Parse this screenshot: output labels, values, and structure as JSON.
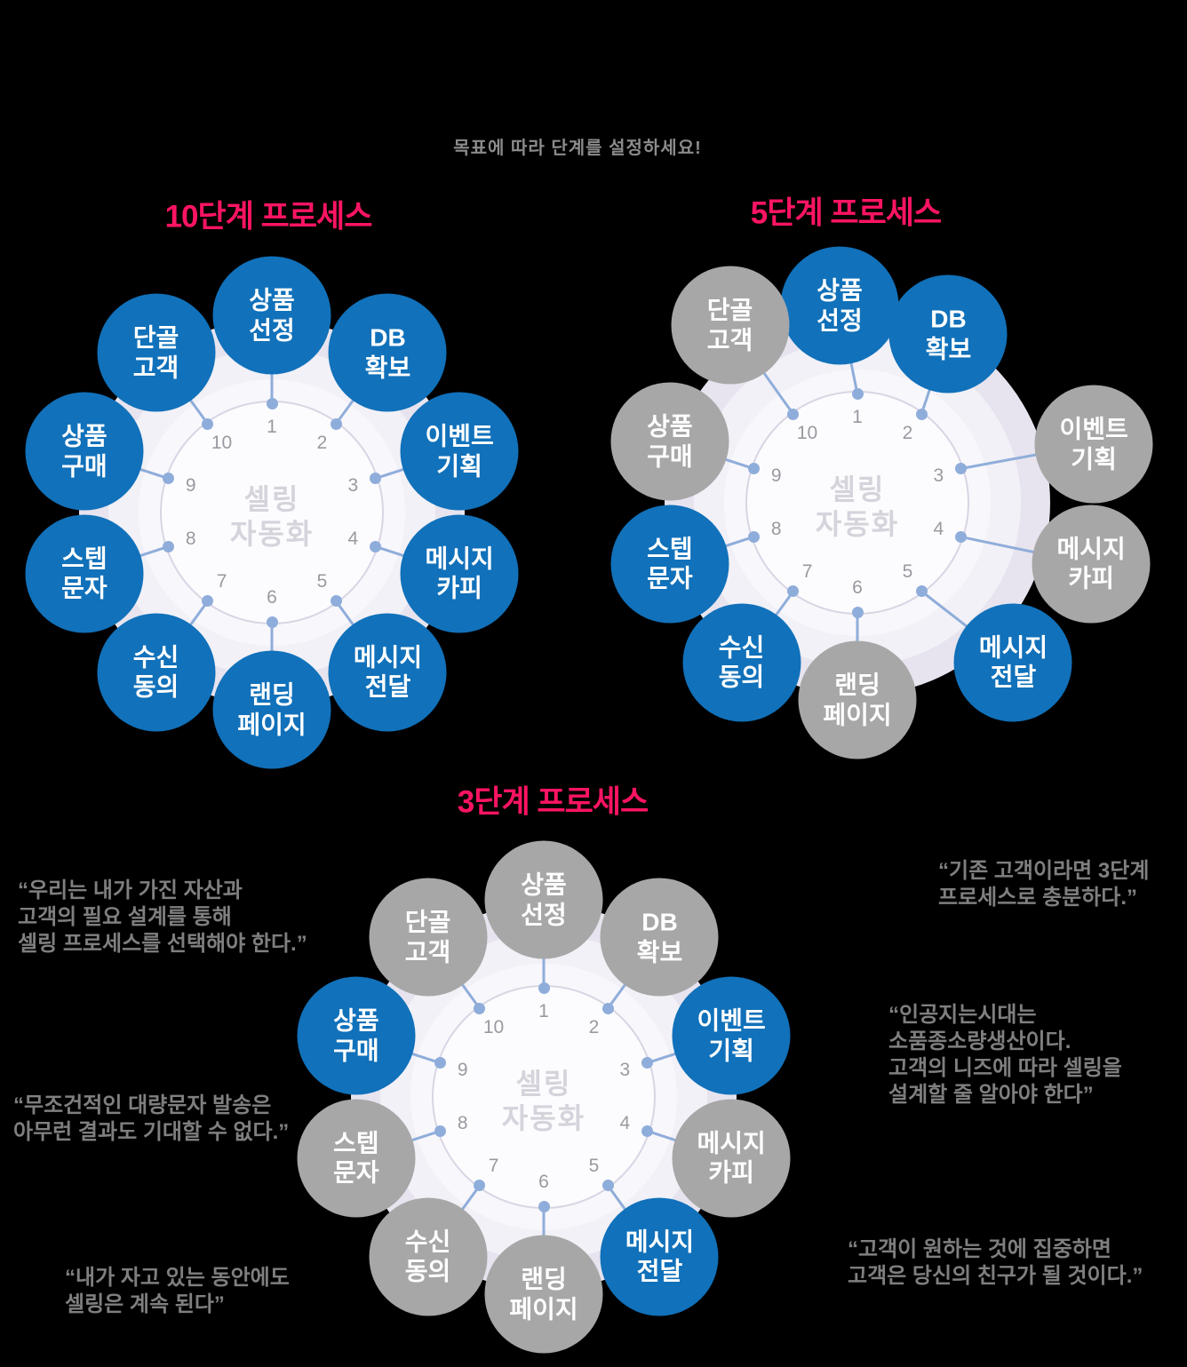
{
  "page": {
    "subtitle": "목표에 따라 단계를 설정하세요!"
  },
  "colors": {
    "background": "#000000",
    "title": "#ff1464",
    "subtitle": "#8b8b8b",
    "quote": "#7f7f7f",
    "node_active": "#1171ba",
    "node_inactive": "#a7a7a7",
    "node_text": "#ffffff",
    "wheel_outer": "#e7e4ef",
    "wheel_mid": "#f2f1f7",
    "wheel_inner": "#f8f7fb",
    "wheel_ring_fill": "#fcfcfe",
    "wheel_ring_stroke": "#d9d5e4",
    "wheel_number": "#9a99a1",
    "wheel_center_text": "#d5d3db",
    "connector": "#8fadda"
  },
  "center_label": {
    "lines": [
      "셀링",
      "자동화"
    ]
  },
  "steps": [
    {
      "num": "1",
      "label": [
        "상품",
        "선정"
      ]
    },
    {
      "num": "2",
      "label": [
        "DB",
        "확보"
      ]
    },
    {
      "num": "3",
      "label": [
        "이벤트",
        "기획"
      ]
    },
    {
      "num": "4",
      "label": [
        "메시지",
        "카피"
      ]
    },
    {
      "num": "5",
      "label": [
        "메시지",
        "전달"
      ]
    },
    {
      "num": "6",
      "label": [
        "랜딩",
        "페이지"
      ]
    },
    {
      "num": "7",
      "label": [
        "수신",
        "동의"
      ]
    },
    {
      "num": "8",
      "label": [
        "스텝",
        "문자"
      ]
    },
    {
      "num": "9",
      "label": [
        "상품",
        "구매"
      ]
    },
    {
      "num": "10",
      "label": [
        "단골",
        "고객"
      ]
    }
  ],
  "diagrams": [
    {
      "title": "10단계 프로세스",
      "active_steps": [
        1,
        2,
        3,
        4,
        5,
        6,
        7,
        8,
        9,
        10
      ]
    },
    {
      "title": "5단계 프로세스",
      "active_steps": [
        1,
        2,
        5,
        7,
        8
      ]
    },
    {
      "title": "3단계 프로세스",
      "active_steps": [
        3,
        5,
        9
      ]
    }
  ],
  "quotes": [
    {
      "lines": [
        "“우리는 내가 가진 자산과",
        "고객의 필요 설계를 통해",
        "셀링 프로세스를 선택해야 한다.”"
      ]
    },
    {
      "lines": [
        "“무조건적인 대량문자 발송은",
        "아무런 결과도 기대할 수 없다.”"
      ]
    },
    {
      "lines": [
        "“내가 자고 있는 동안에도",
        "셀링은 계속 된다”"
      ]
    },
    {
      "lines": [
        "“기존 고객이라면 3단계",
        "프로세스로 충분하다.”"
      ]
    },
    {
      "lines": [
        "“인공지는시대는",
        "소품종소량생산이다.",
        "고객의 니즈에 따라 셀링을",
        "설계할 줄 알아야 한다”"
      ]
    },
    {
      "lines": [
        "“고객이 원하는 것에 집중하면",
        "고객은 당신의 친구가 될 것이다.”"
      ]
    }
  ]
}
